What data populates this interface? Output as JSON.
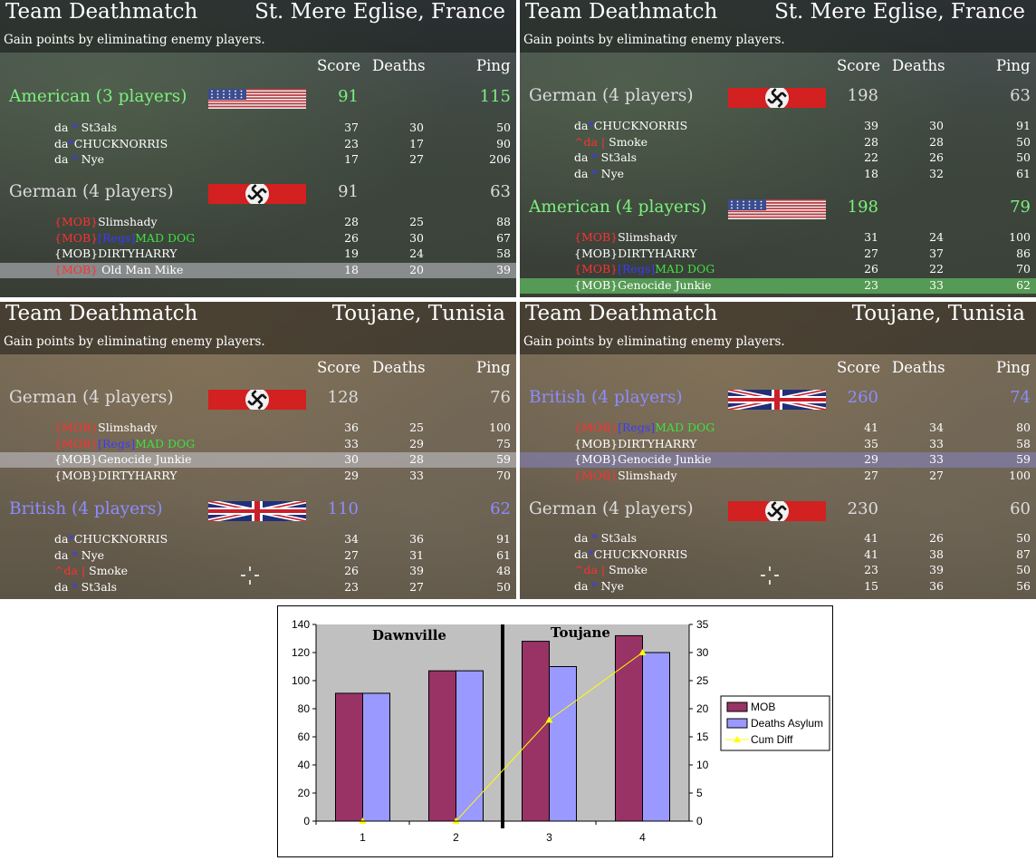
{
  "panels": [
    {
      "title": "Team Deathmatch",
      "map": "St. Mere Eglise, France",
      "subtitle": "Gain points by eliminating enemy players.",
      "bg": "stm",
      "headers": {
        "score": "Score",
        "deaths": "Deaths",
        "ping": "Ping"
      },
      "teams": [
        {
          "name": "American (3 players)",
          "color": "#7df07d",
          "flag": "us",
          "score": "91",
          "ping": "115",
          "players": [
            {
              "parts": [
                [
                  "da ",
                  ""
                ],
                [
                  "*",
                  "blue"
                ],
                [
                  " St3als",
                  ""
                ]
              ],
              "score": "37",
              "deaths": "30",
              "ping": "50"
            },
            {
              "parts": [
                [
                  "da",
                  ""
                ],
                [
                  "*",
                  "blue"
                ],
                [
                  "CHUCKNORRIS",
                  ""
                ]
              ],
              "score": "23",
              "deaths": "17",
              "ping": "90"
            },
            {
              "parts": [
                [
                  "da ",
                  ""
                ],
                [
                  "*",
                  "blue"
                ],
                [
                  " Nye",
                  ""
                ]
              ],
              "score": "17",
              "deaths": "27",
              "ping": "206"
            }
          ]
        },
        {
          "name": "German (4 players)",
          "color": "#dcdcdc",
          "flag": "de",
          "score": "91",
          "ping": "63",
          "players": [
            {
              "parts": [
                [
                  "{MOB}",
                  "red"
                ],
                [
                  "Slimshady",
                  ""
                ]
              ],
              "score": "28",
              "deaths": "25",
              "ping": "88"
            },
            {
              "parts": [
                [
                  "{MOB}",
                  "red"
                ],
                [
                  "[Regs]",
                  "blue"
                ],
                [
                  "MAD DOG",
                  "green"
                ]
              ],
              "score": "26",
              "deaths": "30",
              "ping": "67"
            },
            {
              "parts": [
                [
                  "{MOB}DIRTYHARRY",
                  ""
                ]
              ],
              "score": "19",
              "deaths": "24",
              "ping": "58"
            },
            {
              "parts": [
                [
                  "{MOB}",
                  "red"
                ],
                [
                  " Old Man Mike",
                  ""
                ]
              ],
              "score": "18",
              "deaths": "20",
              "ping": "39",
              "hl": "hl"
            }
          ]
        }
      ]
    },
    {
      "title": "Team Deathmatch",
      "map": "St. Mere Eglise, France",
      "subtitle": "Gain points by eliminating enemy players.",
      "bg": "stm",
      "headers": {
        "score": "Score",
        "deaths": "Deaths",
        "ping": "Ping"
      },
      "teams": [
        {
          "name": "German (4 players)",
          "color": "#dcdcdc",
          "flag": "de",
          "score": "198",
          "ping": "63",
          "players": [
            {
              "parts": [
                [
                  "da",
                  ""
                ],
                [
                  "*",
                  "blue"
                ],
                [
                  "CHUCKNORRIS",
                  ""
                ]
              ],
              "score": "39",
              "deaths": "30",
              "ping": "91"
            },
            {
              "parts": [
                [
                  "^",
                  "red"
                ],
                [
                  "da",
                  "red"
                ],
                [
                  " | ",
                  "red"
                ],
                [
                  "Smoke",
                  ""
                ]
              ],
              "score": "28",
              "deaths": "28",
              "ping": "50"
            },
            {
              "parts": [
                [
                  "da ",
                  ""
                ],
                [
                  "*",
                  "blue"
                ],
                [
                  " St3als",
                  ""
                ]
              ],
              "score": "22",
              "deaths": "26",
              "ping": "50"
            },
            {
              "parts": [
                [
                  "da ",
                  ""
                ],
                [
                  "*",
                  "blue"
                ],
                [
                  " Nye",
                  ""
                ]
              ],
              "score": "18",
              "deaths": "32",
              "ping": "61"
            }
          ]
        },
        {
          "name": "American (4 players)",
          "color": "#7df07d",
          "flag": "us",
          "score": "198",
          "ping": "79",
          "players": [
            {
              "parts": [
                [
                  "{MOB}",
                  "red"
                ],
                [
                  "Slimshady",
                  ""
                ]
              ],
              "score": "31",
              "deaths": "24",
              "ping": "100"
            },
            {
              "parts": [
                [
                  "{MOB}DIRTYHARRY",
                  ""
                ]
              ],
              "score": "27",
              "deaths": "37",
              "ping": "86"
            },
            {
              "parts": [
                [
                  "{MOB}",
                  "red"
                ],
                [
                  "[Regs]",
                  "blue"
                ],
                [
                  "MAD DOG",
                  "green"
                ]
              ],
              "score": "26",
              "deaths": "22",
              "ping": "70"
            },
            {
              "parts": [
                [
                  "{MOB}Genocide Junkie",
                  ""
                ]
              ],
              "score": "23",
              "deaths": "33",
              "ping": "62",
              "hl": "hlg"
            }
          ]
        }
      ]
    },
    {
      "title": "Team Deathmatch",
      "map": "Toujane, Tunisia",
      "subtitle": "Gain points by eliminating enemy players.",
      "bg": "tou",
      "headers": {
        "score": "Score",
        "deaths": "Deaths",
        "ping": "Ping"
      },
      "teams": [
        {
          "name": "German (4 players)",
          "color": "#dcdcdc",
          "flag": "de",
          "score": "128",
          "ping": "76",
          "players": [
            {
              "parts": [
                [
                  "{MOB}",
                  "red"
                ],
                [
                  "Slimshady",
                  ""
                ]
              ],
              "score": "36",
              "deaths": "25",
              "ping": "100"
            },
            {
              "parts": [
                [
                  "{MOB}",
                  "red"
                ],
                [
                  "[Regs]",
                  "blue"
                ],
                [
                  "MAD DOG",
                  "green"
                ]
              ],
              "score": "33",
              "deaths": "29",
              "ping": "75"
            },
            {
              "parts": [
                [
                  "{MOB}Genocide Junkie",
                  ""
                ]
              ],
              "score": "30",
              "deaths": "28",
              "ping": "59",
              "hl": "hl"
            },
            {
              "parts": [
                [
                  "{MOB}DIRTYHARRY",
                  ""
                ]
              ],
              "score": "29",
              "deaths": "33",
              "ping": "70"
            }
          ]
        },
        {
          "name": "British (4 players)",
          "color": "#8c8cff",
          "flag": "uk",
          "score": "110",
          "ping": "62",
          "players": [
            {
              "parts": [
                [
                  "da",
                  ""
                ],
                [
                  "*",
                  "blue"
                ],
                [
                  "CHUCKNORRIS",
                  ""
                ]
              ],
              "score": "34",
              "deaths": "36",
              "ping": "91"
            },
            {
              "parts": [
                [
                  "da ",
                  ""
                ],
                [
                  "*",
                  "blue"
                ],
                [
                  " Nye",
                  ""
                ]
              ],
              "score": "27",
              "deaths": "31",
              "ping": "61"
            },
            {
              "parts": [
                [
                  "^",
                  "red"
                ],
                [
                  "da",
                  "red"
                ],
                [
                  " | ",
                  "red"
                ],
                [
                  "Smoke",
                  ""
                ]
              ],
              "score": "26",
              "deaths": "39",
              "ping": "48"
            },
            {
              "parts": [
                [
                  "da ",
                  ""
                ],
                [
                  "*",
                  "blue"
                ],
                [
                  " St3als",
                  ""
                ]
              ],
              "score": "23",
              "deaths": "27",
              "ping": "50"
            }
          ]
        }
      ]
    },
    {
      "title": "Team Deathmatch",
      "map": "Toujane, Tunisia",
      "subtitle": "Gain points by eliminating enemy players.",
      "bg": "tou",
      "headers": {
        "score": "Score",
        "deaths": "Deaths",
        "ping": "Ping"
      },
      "teams": [
        {
          "name": "British (4 players)",
          "color": "#8c8cff",
          "flag": "uk",
          "score": "260",
          "ping": "74",
          "players": [
            {
              "parts": [
                [
                  "{MOB}",
                  "red"
                ],
                [
                  "[Regs]",
                  "blue"
                ],
                [
                  "MAD DOG",
                  "green"
                ]
              ],
              "score": "41",
              "deaths": "34",
              "ping": "80"
            },
            {
              "parts": [
                [
                  "{MOB}DIRTYHARRY",
                  ""
                ]
              ],
              "score": "35",
              "deaths": "33",
              "ping": "58"
            },
            {
              "parts": [
                [
                  "{MOB}Genocide Junkie",
                  ""
                ]
              ],
              "score": "29",
              "deaths": "33",
              "ping": "59",
              "hl": "hlb"
            },
            {
              "parts": [
                [
                  "{MOB}",
                  "red"
                ],
                [
                  "Slimshady",
                  ""
                ]
              ],
              "score": "27",
              "deaths": "27",
              "ping": "100"
            }
          ]
        },
        {
          "name": "German (4 players)",
          "color": "#dcdcdc",
          "flag": "de",
          "score": "230",
          "ping": "60",
          "players": [
            {
              "parts": [
                [
                  "da ",
                  ""
                ],
                [
                  "*",
                  "blue"
                ],
                [
                  " St3als",
                  ""
                ]
              ],
              "score": "41",
              "deaths": "26",
              "ping": "50"
            },
            {
              "parts": [
                [
                  "da",
                  ""
                ],
                [
                  "*",
                  "blue"
                ],
                [
                  "CHUCKNORRIS",
                  ""
                ]
              ],
              "score": "41",
              "deaths": "38",
              "ping": "87"
            },
            {
              "parts": [
                [
                  "^",
                  "red"
                ],
                [
                  "da",
                  "red"
                ],
                [
                  " | ",
                  "red"
                ],
                [
                  "Smoke",
                  ""
                ]
              ],
              "score": "23",
              "deaths": "39",
              "ping": "50"
            },
            {
              "parts": [
                [
                  "da ",
                  ""
                ],
                [
                  "*",
                  "blue"
                ],
                [
                  " Nye",
                  ""
                ]
              ],
              "score": "15",
              "deaths": "36",
              "ping": "56"
            }
          ]
        }
      ]
    }
  ],
  "chart_data": {
    "type": "bar",
    "categories": [
      "1",
      "2",
      "3",
      "4"
    ],
    "series": [
      {
        "name": "MOB",
        "type": "bar",
        "axis": "left",
        "color": "#993366",
        "values": [
          91,
          107,
          128,
          132
        ]
      },
      {
        "name": "Deaths Asylum",
        "type": "bar",
        "axis": "left",
        "color": "#9999ff",
        "values": [
          91,
          107,
          110,
          120
        ]
      },
      {
        "name": "Cum Diff",
        "type": "line",
        "axis": "right",
        "color": "#ffff00",
        "values": [
          0,
          0,
          18,
          30
        ]
      }
    ],
    "ylim_left": [
      0,
      140
    ],
    "yticks_left": [
      "0",
      "20",
      "40",
      "60",
      "80",
      "100",
      "120",
      "140"
    ],
    "ylim_right": [
      0,
      35
    ],
    "yticks_right": [
      "0",
      "5",
      "10",
      "15",
      "20",
      "25",
      "30",
      "35"
    ],
    "annotations": [
      "Dawnville",
      "Toujane"
    ],
    "plot_bg": "#c0c0c0",
    "grid": false,
    "legend": "right"
  }
}
